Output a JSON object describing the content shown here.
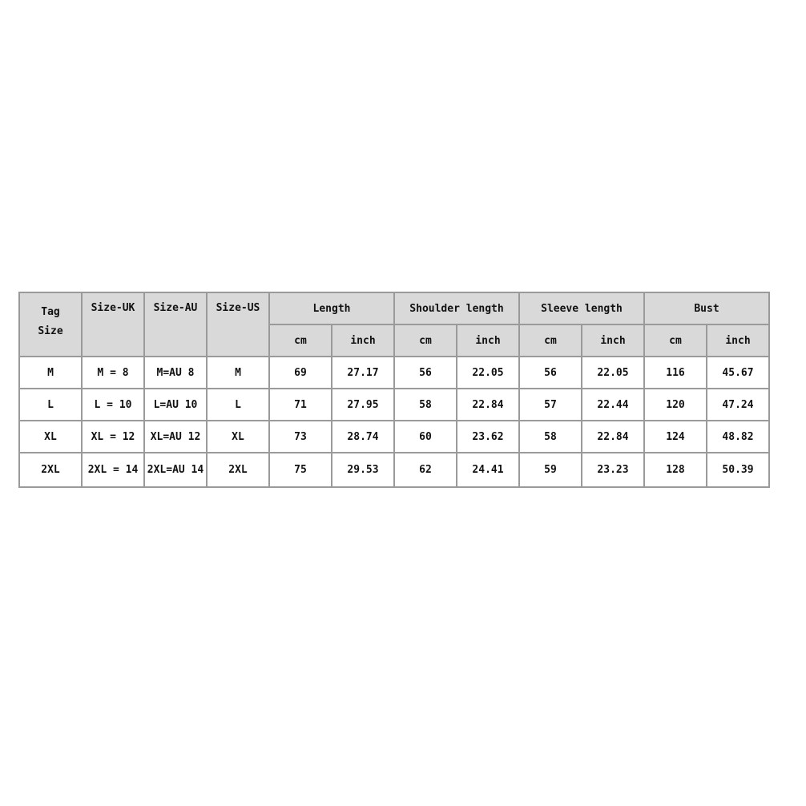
{
  "table": {
    "headers": {
      "tag_size": [
        "Tag",
        "Size"
      ],
      "size_uk": "Size-UK",
      "size_au": "Size-AU",
      "size_us": "Size-US",
      "groups": [
        "Length",
        "Shoulder length",
        "Sleeve length",
        "Bust"
      ],
      "units": [
        "cm",
        "inch",
        "cm",
        "inch",
        "cm",
        "inch",
        "cm",
        "inch"
      ]
    },
    "rows": [
      [
        "M",
        "M = 8",
        "M=AU 8",
        "M",
        "69",
        "27.17",
        "56",
        "22.05",
        "56",
        "22.05",
        "116",
        "45.67"
      ],
      [
        "L",
        "L = 10",
        "L=AU 10",
        "L",
        "71",
        "27.95",
        "58",
        "22.84",
        "57",
        "22.44",
        "120",
        "47.24"
      ],
      [
        "XL",
        "XL = 12",
        "XL=AU 12",
        "XL",
        "73",
        "28.74",
        "60",
        "23.62",
        "58",
        "22.84",
        "124",
        "48.82"
      ],
      [
        "2XL",
        "2XL = 14",
        "2XL=AU 14",
        "2XL",
        "75",
        "29.53",
        "62",
        "24.41",
        "59",
        "23.23",
        "128",
        "50.39"
      ]
    ]
  },
  "colors": {
    "header_bg": "#d9d9d9",
    "border": "#9a9a9a"
  }
}
